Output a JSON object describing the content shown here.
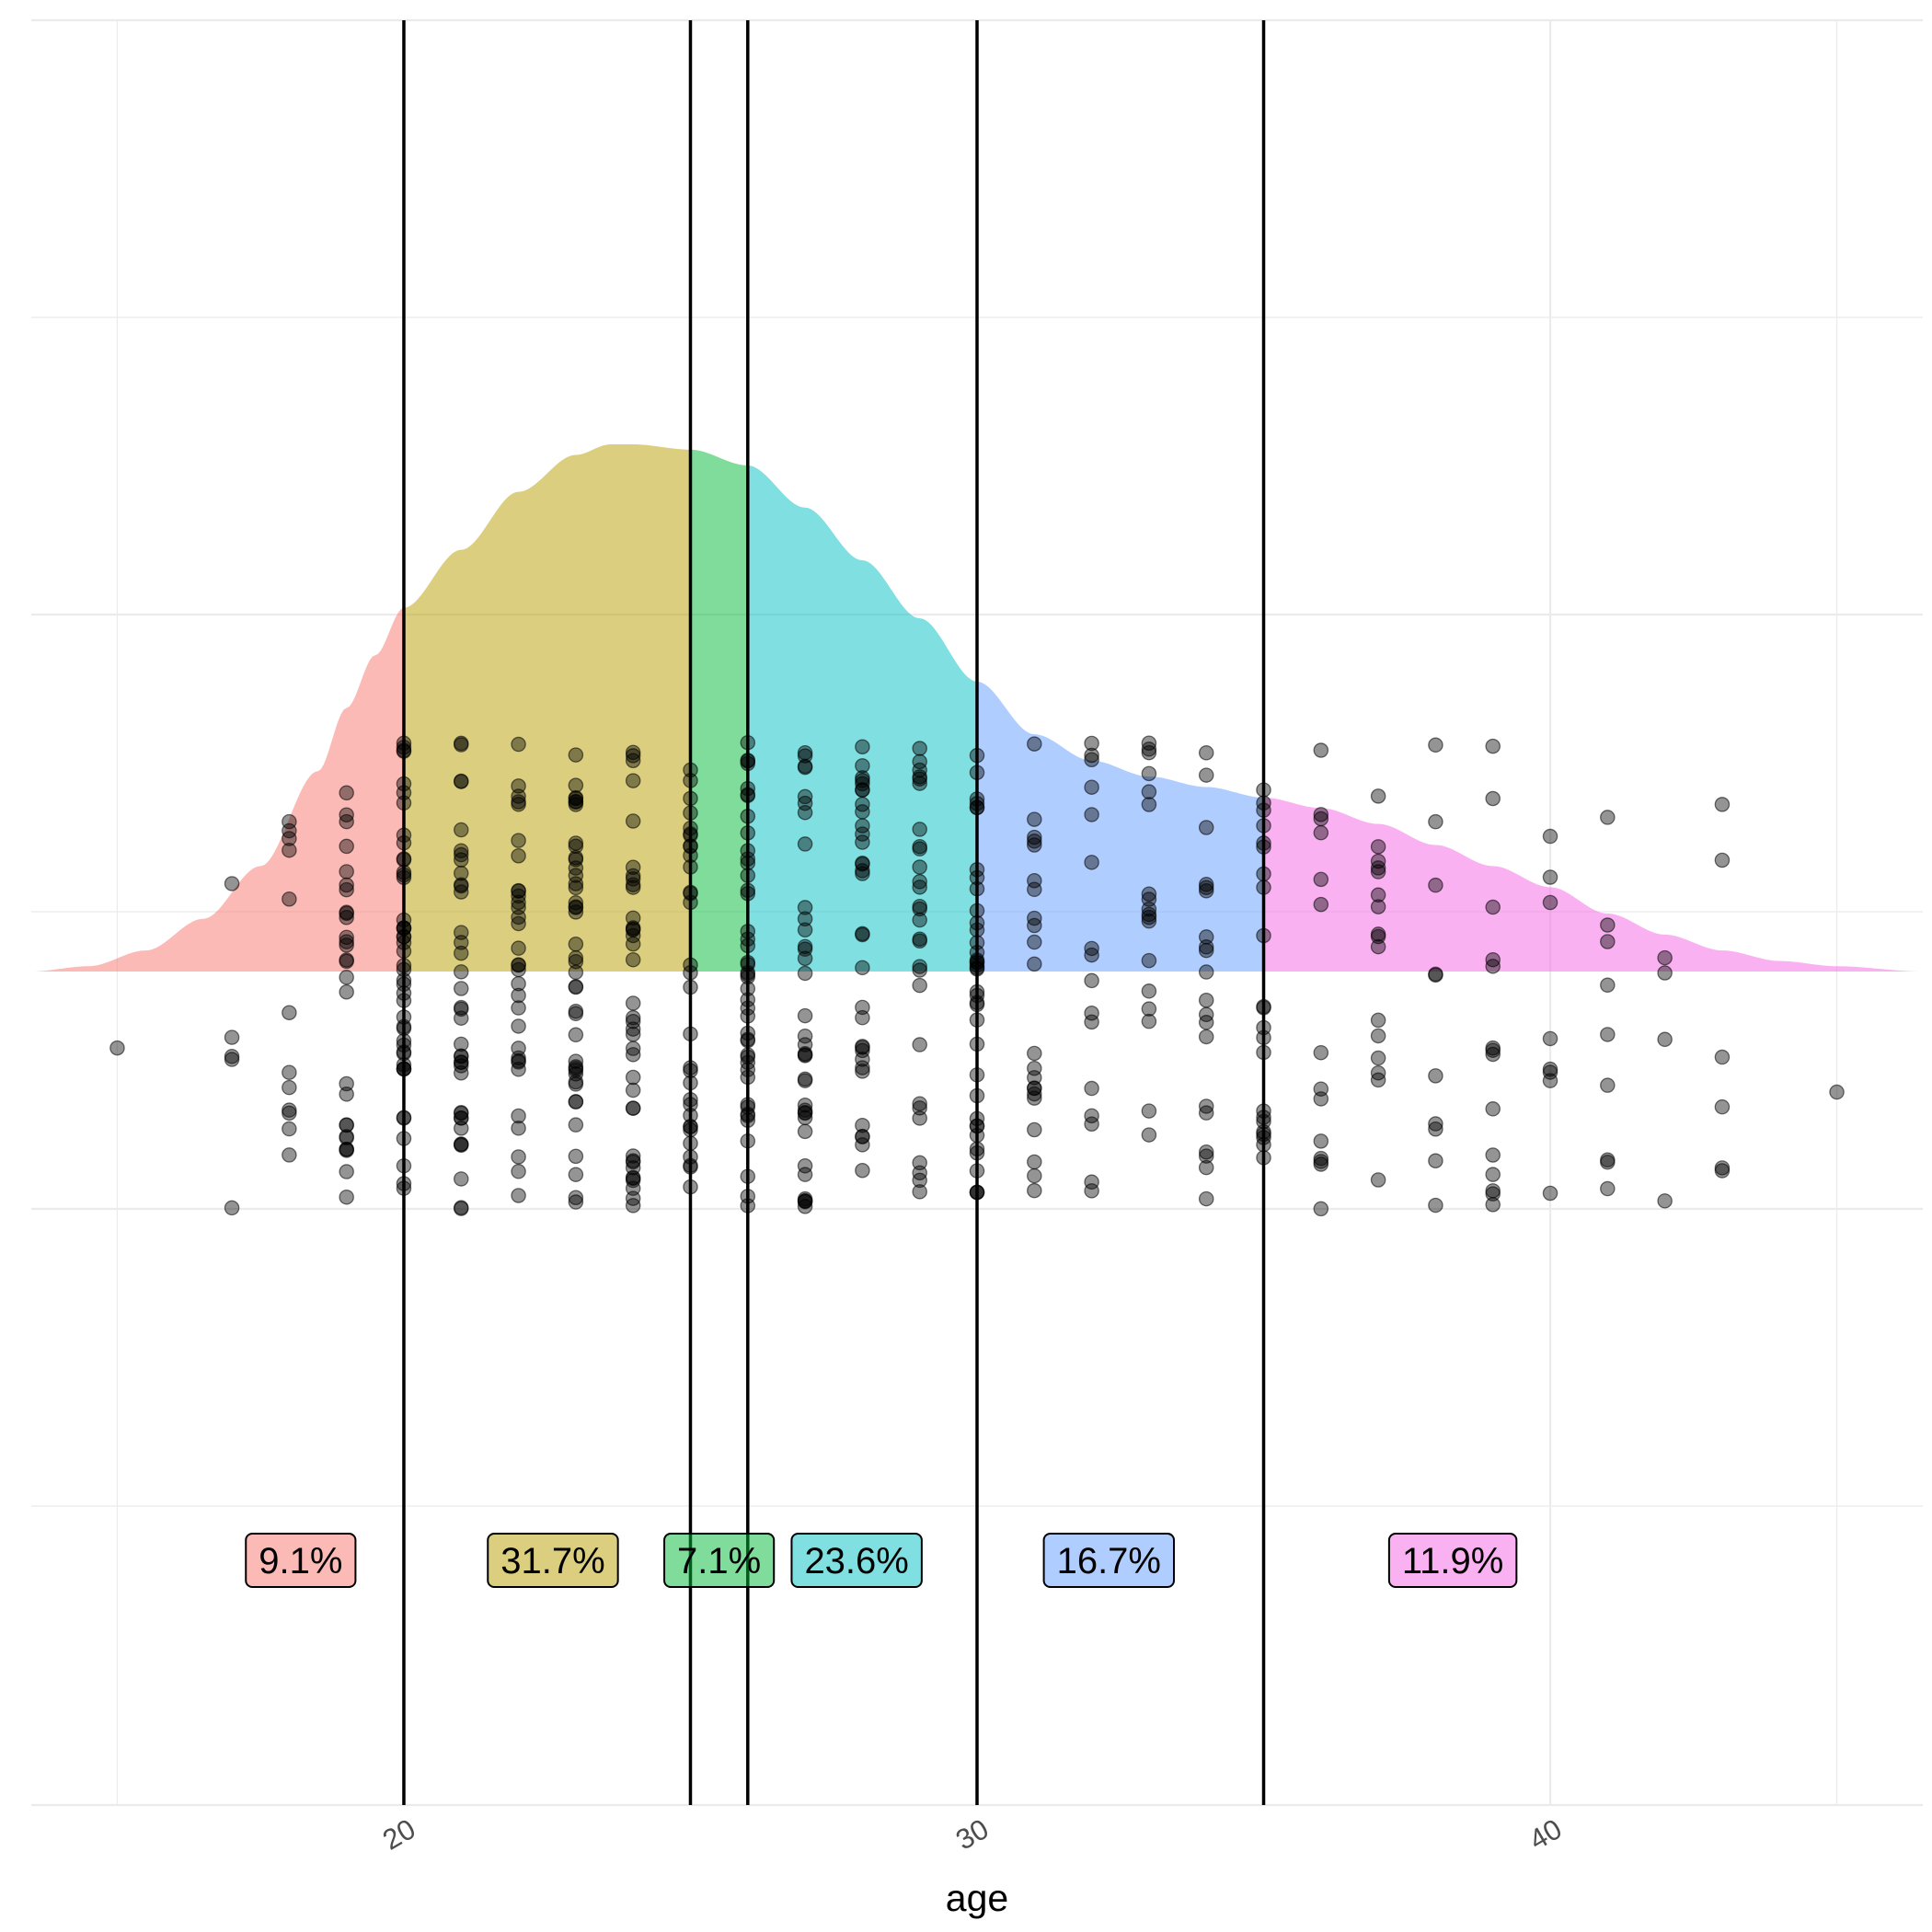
{
  "chart_data": {
    "type": "density",
    "xlabel": "age",
    "xlim": [
      13.5,
      46.5
    ],
    "x_ticks": [
      20,
      30,
      40
    ],
    "x_tick_labels": [
      "20",
      "30",
      "40"
    ],
    "grid": true,
    "cutoffs": [
      20,
      25,
      26,
      30,
      35
    ],
    "segments": [
      {
        "range": [
          13.5,
          20
        ],
        "label": "9.1%",
        "color": "#F8766D",
        "label_x": 18.2
      },
      {
        "range": [
          20,
          25
        ],
        "label": "31.7%",
        "color": "#B79F00",
        "label_x": 22.6
      },
      {
        "range": [
          25,
          26
        ],
        "label": "7.1%",
        "color": "#00BA38",
        "label_x": 25.5
      },
      {
        "range": [
          26,
          30
        ],
        "label": "23.6%",
        "color": "#00BFC4",
        "label_x": 27.9
      },
      {
        "range": [
          30,
          35
        ],
        "label": "16.7%",
        "color": "#619CFF",
        "label_x": 32.3
      },
      {
        "range": [
          35,
          46.5
        ],
        "label": "11.9%",
        "color": "#F564E3",
        "label_x": 38.3
      }
    ],
    "density_profile": {
      "x": [
        13.5,
        14.5,
        15.5,
        16.5,
        17.5,
        18.5,
        19.0,
        19.5,
        20.0,
        21.0,
        22.0,
        23.0,
        23.6,
        24.0,
        25.0,
        26.0,
        27.0,
        28.0,
        29.0,
        30.0,
        31.0,
        32.0,
        33.0,
        34.0,
        35.0,
        36.0,
        37.0,
        38.0,
        39.0,
        40.0,
        41.0,
        42.0,
        43.0,
        44.0,
        45.0,
        46.5
      ],
      "relative_height": [
        0.0,
        0.01,
        0.04,
        0.1,
        0.2,
        0.38,
        0.5,
        0.6,
        0.69,
        0.8,
        0.91,
        0.98,
        1.0,
        1.0,
        0.99,
        0.96,
        0.88,
        0.78,
        0.67,
        0.55,
        0.45,
        0.4,
        0.37,
        0.35,
        0.33,
        0.31,
        0.28,
        0.24,
        0.2,
        0.16,
        0.11,
        0.07,
        0.04,
        0.02,
        0.01,
        0.0
      ]
    },
    "points": {
      "description": "jittered raw age observations, integer ages",
      "ages": [
        15,
        17,
        18,
        19,
        20,
        21,
        22,
        23,
        24,
        25,
        26,
        27,
        28,
        29,
        30,
        31,
        32,
        33,
        34,
        35,
        36,
        37,
        38,
        39,
        40,
        41,
        42,
        43,
        45
      ],
      "counts": [
        1,
        5,
        12,
        28,
        45,
        38,
        32,
        42,
        38,
        32,
        44,
        36,
        32,
        28,
        38,
        22,
        16,
        18,
        20,
        22,
        14,
        16,
        10,
        14,
        8,
        9,
        4,
        6,
        1
      ]
    }
  }
}
